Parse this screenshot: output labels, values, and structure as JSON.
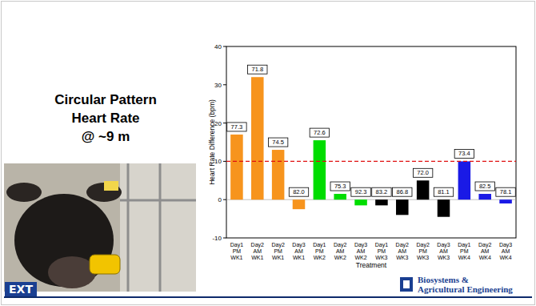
{
  "slide": {
    "title_lines": [
      "Circular Pattern",
      "Heart Rate",
      "@ ~9 m"
    ],
    "left_logo": "EXT",
    "right_logo": [
      "Biosystems &",
      "Agricultural Engineering"
    ]
  },
  "chart_data": {
    "type": "bar",
    "x_label": "Treatment",
    "y_label": "Heart Rate Difference (bpm)",
    "categories": [
      "Day1 PM WK1",
      "Day2 AM WK1",
      "Day2 PM WK1",
      "Day3 AM WK1",
      "Day1 PM WK2",
      "Day2 AM WK2",
      "Day3 AM WK2",
      "Day1 PM WK3",
      "Day2 AM WK3",
      "Day2 PM WK3",
      "Day3 AM WK3",
      "Day1 PM WK4",
      "Day2 AM WK4",
      "Day3 AM WK4"
    ],
    "values": [
      17,
      32,
      13,
      -2.5,
      15.5,
      1.5,
      -1.5,
      -1.5,
      -4,
      5,
      -4.5,
      10,
      1.5,
      -1
    ],
    "colors": [
      "#f7941d",
      "#f7941d",
      "#f7941d",
      "#f7941d",
      "#00dd00",
      "#00dd00",
      "#00dd00",
      "#000000",
      "#000000",
      "#000000",
      "#000000",
      "#1a1ae6",
      "#1a1ae6",
      "#1a1ae6"
    ],
    "box_labels": [
      "77.3",
      "71.8",
      "74.5",
      "82.0",
      "72.6",
      "75.3",
      "92.3",
      "83.2",
      "86.8",
      "72.0",
      "81.1",
      "73.4",
      "82.5",
      "78.1"
    ],
    "reference_line": 10,
    "ylim": [
      -10,
      40
    ],
    "yticks": [
      -10,
      0,
      10,
      20,
      30,
      40
    ],
    "grid": false
  }
}
